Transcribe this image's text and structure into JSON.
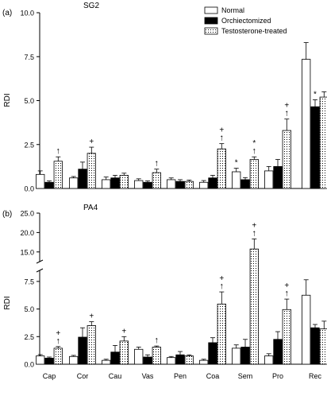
{
  "chart_data": [
    {
      "type": "bar",
      "panel_label": "(a)",
      "title": "SG2",
      "ylabel": "RDI",
      "ylim": [
        0,
        10
      ],
      "yticks": [
        "0.0",
        "2.5",
        "5.0",
        "7.5",
        "10.0"
      ],
      "ytick_values": [
        0,
        2.5,
        5,
        7.5,
        10
      ],
      "categories": [
        "Cap",
        "Cor",
        "Cau",
        "Vas",
        "Pen",
        "Coa",
        "Sem",
        "Pro",
        "Rec"
      ],
      "series": [
        {
          "name": "Normal",
          "values": [
            0.8,
            0.6,
            0.5,
            0.45,
            0.5,
            0.35,
            0.95,
            1.0,
            7.35
          ],
          "errors": [
            0.2,
            0.08,
            0.15,
            0.1,
            0.1,
            0.1,
            0.2,
            0.25,
            0.95
          ]
        },
        {
          "name": "Orchiectomized",
          "values": [
            0.35,
            1.1,
            0.6,
            0.35,
            0.4,
            0.6,
            0.5,
            1.25,
            4.65
          ],
          "errors": [
            0.08,
            0.4,
            0.15,
            0.08,
            0.1,
            0.15,
            0.12,
            0.4,
            0.4
          ]
        },
        {
          "name": "Testosterone-treated",
          "values": [
            1.55,
            2.0,
            0.75,
            0.9,
            0.4,
            2.25,
            1.65,
            3.3,
            5.2
          ],
          "errors": [
            0.25,
            0.35,
            0.12,
            0.2,
            0.08,
            0.3,
            0.15,
            0.65,
            0.3
          ]
        }
      ],
      "annotations": [
        {
          "category": "Cap",
          "series": 2,
          "marks": [
            "↑"
          ]
        },
        {
          "category": "Cor",
          "series": 2,
          "marks": [
            "+"
          ]
        },
        {
          "category": "Vas",
          "series": 2,
          "marks": [
            "↑"
          ]
        },
        {
          "category": "Coa",
          "series": 2,
          "marks": [
            "↑",
            "+"
          ]
        },
        {
          "category": "Sem",
          "series": 0,
          "marks": [
            "*"
          ]
        },
        {
          "category": "Sem",
          "series": 2,
          "marks": [
            "↑",
            "*"
          ]
        },
        {
          "category": "Pro",
          "series": 2,
          "marks": [
            "↑",
            "+"
          ]
        },
        {
          "category": "Rec",
          "series": 1,
          "marks": [
            "*"
          ]
        }
      ],
      "legend": {
        "placement": "top-right",
        "entries": [
          "Normal",
          "Orchiectomized",
          "Testosterone-treated"
        ]
      }
    },
    {
      "type": "bar",
      "panel_label": "(b)",
      "title": "PA4",
      "ylabel": "RDI",
      "ylim": [
        0,
        25
      ],
      "axis_break": {
        "lower_range": [
          0,
          8.5
        ],
        "upper_range": [
          12.5,
          25
        ]
      },
      "yticks": [
        "0.0",
        "2.5",
        "5.0",
        "7.5",
        "15.0",
        "20.0",
        "25.0"
      ],
      "ytick_values": [
        0,
        2.5,
        5,
        7.5,
        15,
        20,
        25
      ],
      "categories": [
        "Cap",
        "Cor",
        "Cau",
        "Vas",
        "Pen",
        "Coa",
        "Sem",
        "Pro",
        "Rec"
      ],
      "series": [
        {
          "name": "Normal",
          "values": [
            0.75,
            0.7,
            0.35,
            1.35,
            0.6,
            0.35,
            1.45,
            0.75,
            6.25
          ],
          "errors": [
            0.12,
            0.1,
            0.1,
            0.2,
            0.1,
            0.1,
            0.3,
            0.2,
            1.4
          ]
        },
        {
          "name": "Orchiectomized",
          "values": [
            0.55,
            2.45,
            1.1,
            0.65,
            0.85,
            1.95,
            1.55,
            2.25,
            3.3
          ],
          "errors": [
            0.1,
            0.85,
            0.6,
            0.2,
            0.3,
            0.45,
            0.7,
            0.7,
            0.3
          ]
        },
        {
          "name": "Testosterone-treated",
          "values": [
            1.45,
            3.5,
            2.1,
            1.55,
            0.75,
            5.45,
            15.75,
            4.95,
            3.2
          ],
          "errors": [
            0.15,
            0.35,
            0.4,
            0.1,
            0.1,
            1.1,
            2.6,
            0.95,
            0.7
          ]
        }
      ],
      "annotations": [
        {
          "category": "Cap",
          "series": 2,
          "marks": [
            "↑",
            "+"
          ]
        },
        {
          "category": "Cor",
          "series": 2,
          "marks": [
            "+"
          ]
        },
        {
          "category": "Cau",
          "series": 2,
          "marks": [
            "+"
          ]
        },
        {
          "category": "Vas",
          "series": 2,
          "marks": [
            "↑"
          ]
        },
        {
          "category": "Coa",
          "series": 2,
          "marks": [
            "↑",
            "+"
          ]
        },
        {
          "category": "Sem",
          "series": 2,
          "marks": [
            "↑",
            "+"
          ]
        },
        {
          "category": "Pro",
          "series": 2,
          "marks": [
            "↑",
            "+"
          ]
        }
      ]
    }
  ],
  "colors": {
    "normal": "#ffffff",
    "orchiectomized": "#000000",
    "testosterone": "#ffffff",
    "stroke": "#000000"
  }
}
